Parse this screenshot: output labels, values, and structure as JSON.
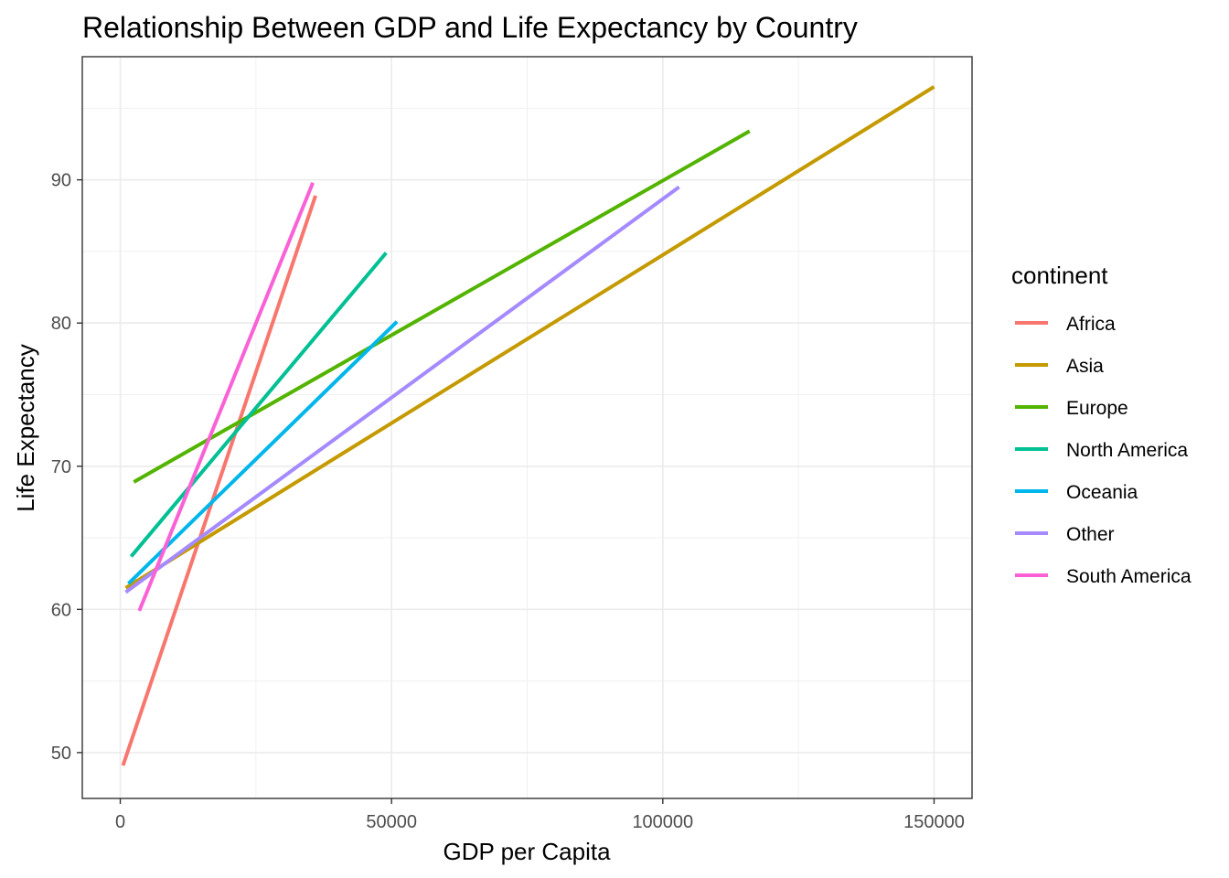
{
  "chart_data": {
    "type": "line",
    "title": "Relationship Between GDP and Life Expectancy by Country",
    "xlabel": "GDP per Capita",
    "ylabel": "Life Expectancy",
    "xlim": [
      -7000,
      157000
    ],
    "ylim": [
      46.8,
      98.6
    ],
    "x_ticks": [
      0,
      50000,
      100000,
      150000
    ],
    "x_tick_labels": [
      "0",
      "50000",
      "100000",
      "150000"
    ],
    "y_ticks": [
      50,
      60,
      70,
      80,
      90
    ],
    "y_tick_labels": [
      "50",
      "60",
      "70",
      "80",
      "90"
    ],
    "grid": true,
    "legend": {
      "title": "continent",
      "placement": "right"
    },
    "series": [
      {
        "name": "Africa",
        "color": "#F8766D",
        "x": [
          500,
          36000
        ],
        "y": [
          49.1,
          88.9
        ]
      },
      {
        "name": "Asia",
        "color": "#C49A00",
        "x": [
          1000,
          150000
        ],
        "y": [
          61.5,
          96.5
        ]
      },
      {
        "name": "Europe",
        "color": "#53B400",
        "x": [
          2500,
          116000
        ],
        "y": [
          68.9,
          93.4
        ]
      },
      {
        "name": "North America",
        "color": "#00C094",
        "x": [
          2000,
          49000
        ],
        "y": [
          63.7,
          84.9
        ]
      },
      {
        "name": "Oceania",
        "color": "#00B6EB",
        "x": [
          1500,
          51000
        ],
        "y": [
          61.8,
          80.1
        ]
      },
      {
        "name": "Other",
        "color": "#A58AFF",
        "x": [
          1000,
          103000
        ],
        "y": [
          61.2,
          89.5
        ]
      },
      {
        "name": "South America",
        "color": "#FB61D7",
        "x": [
          3500,
          35500
        ],
        "y": [
          59.9,
          89.8
        ]
      }
    ]
  }
}
